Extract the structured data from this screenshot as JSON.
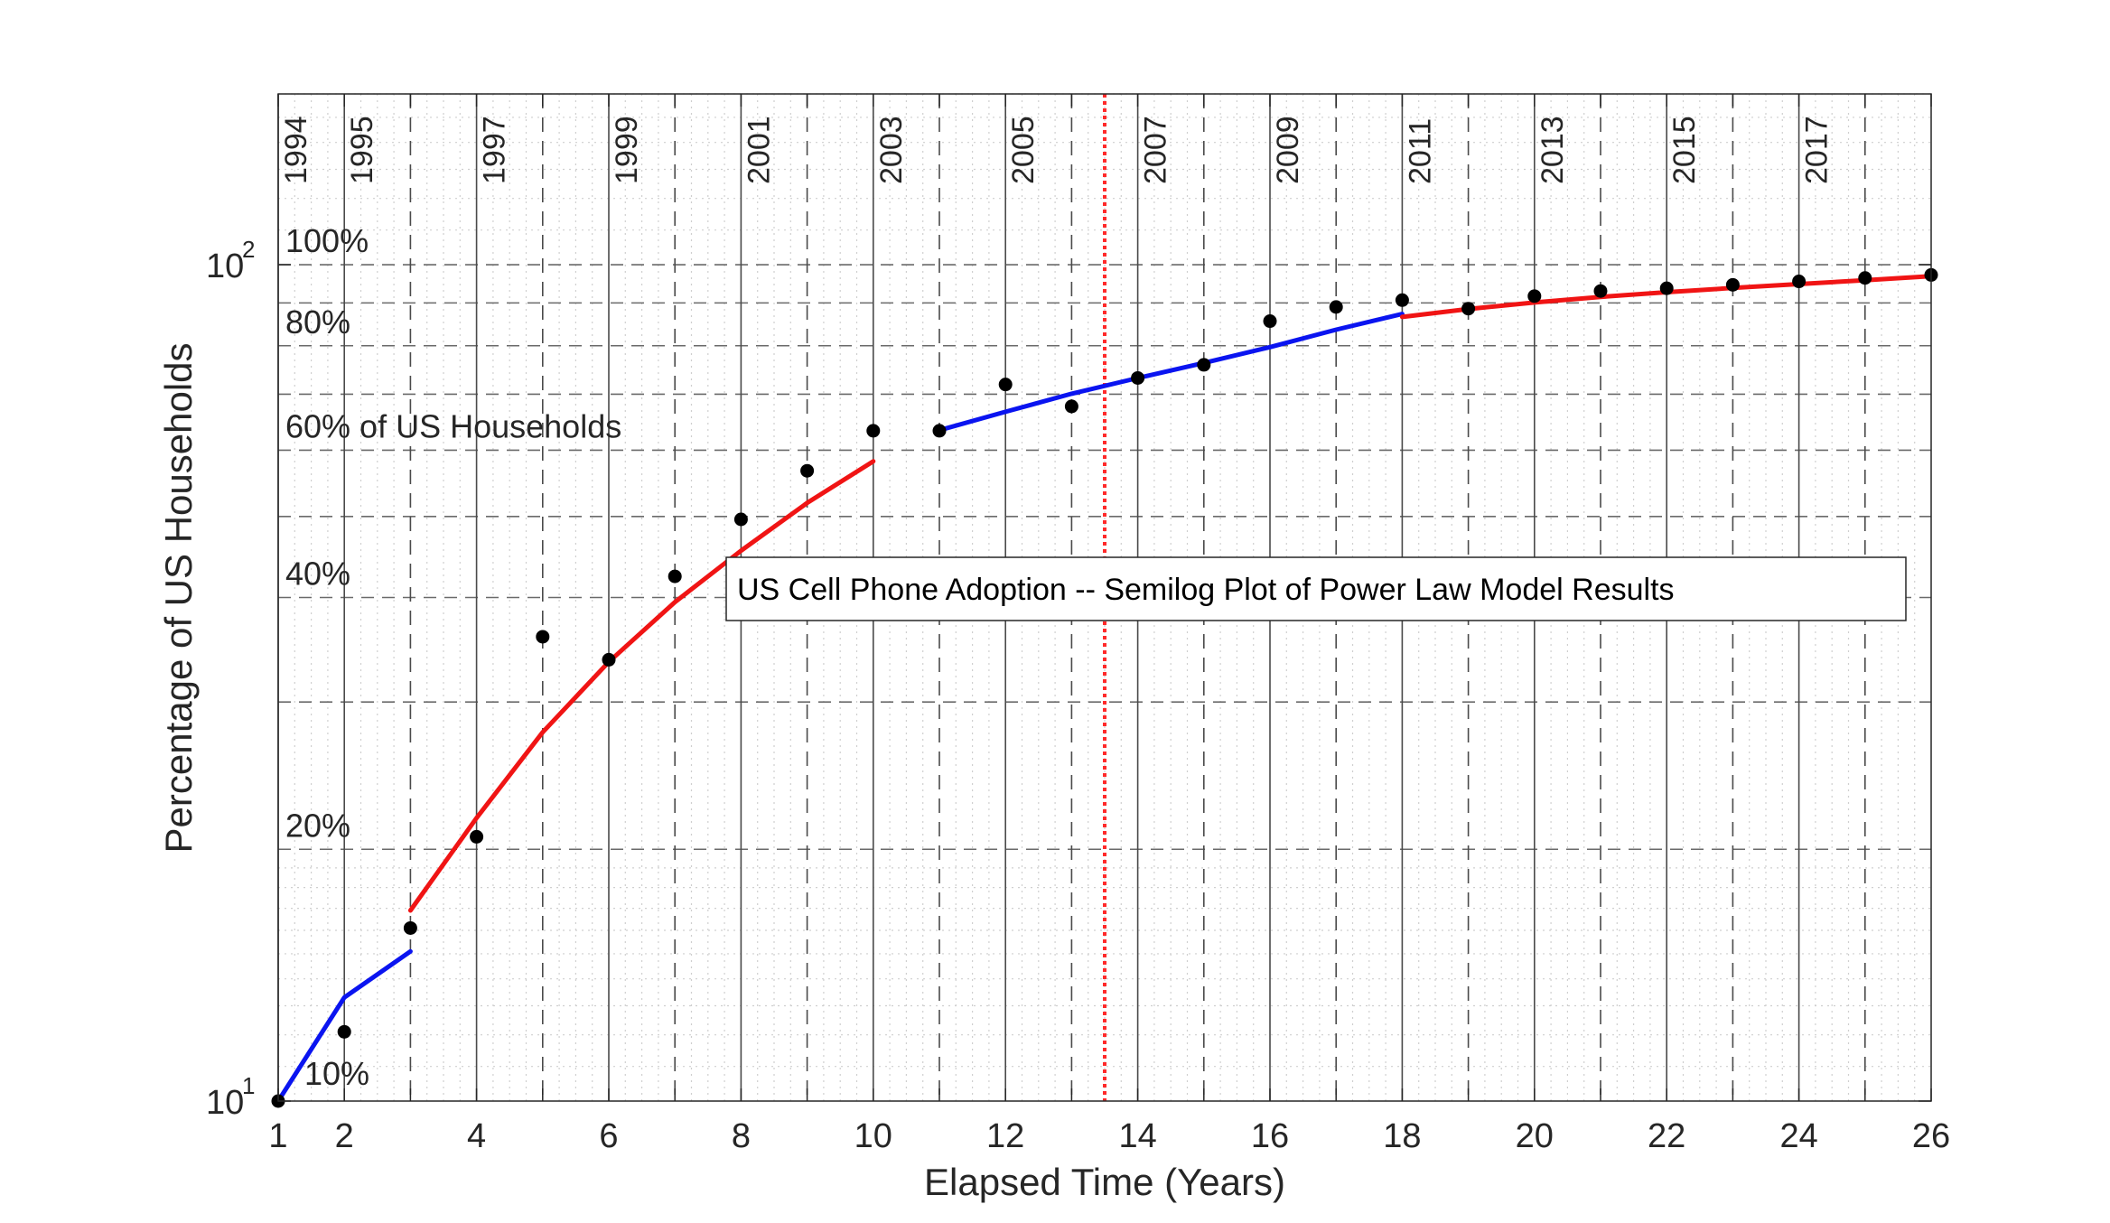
{
  "chart_data": {
    "type": "line",
    "title": "US Cell Phone Adoption -- Semilog Plot of Power Law Model Results",
    "xlabel": "Elapsed Time (Years)",
    "ylabel": "Percentage of US Households",
    "xlim": [
      1,
      26
    ],
    "ylim": [
      10,
      160
    ],
    "yscale": "log",
    "grid": true,
    "x_ticks": [
      1,
      2,
      4,
      6,
      8,
      10,
      12,
      14,
      16,
      18,
      20,
      22,
      24,
      26
    ],
    "x_tick_labels": [
      "1",
      "2",
      "4",
      "6",
      "8",
      "10",
      "12",
      "14",
      "16",
      "18",
      "20",
      "22",
      "24",
      "26"
    ],
    "y_ticks": [
      {
        "value": 10,
        "base": "10",
        "exp": "1"
      },
      {
        "value": 100,
        "base": "10",
        "exp": "2"
      }
    ],
    "pct_labels": [
      {
        "value": 10,
        "text": "10%"
      },
      {
        "value": 20,
        "text": "20%"
      },
      {
        "value": 40,
        "text": "40%"
      },
      {
        "value": 60,
        "text": "60% of US Households"
      },
      {
        "value": 80,
        "text": "80%"
      },
      {
        "value": 100,
        "text": "100%"
      }
    ],
    "year_labels": [
      {
        "x": 1,
        "text": "1994"
      },
      {
        "x": 2,
        "text": "1995"
      },
      {
        "x": 4,
        "text": "1997"
      },
      {
        "x": 6,
        "text": "1999"
      },
      {
        "x": 8,
        "text": "2001"
      },
      {
        "x": 10,
        "text": "2003"
      },
      {
        "x": 12,
        "text": "2005"
      },
      {
        "x": 14,
        "text": "2007"
      },
      {
        "x": 16,
        "text": "2009"
      },
      {
        "x": 18,
        "text": "2011"
      },
      {
        "x": 20,
        "text": "2013"
      },
      {
        "x": 22,
        "text": "2015"
      },
      {
        "x": 24,
        "text": "2017"
      }
    ],
    "solid_year_lines": [
      1,
      2,
      4,
      6,
      8,
      10,
      12,
      14,
      16,
      18,
      20,
      22,
      24
    ],
    "dashed_year_lines": [
      3,
      5,
      7,
      9,
      11,
      13,
      15,
      17,
      19,
      21,
      23,
      25
    ],
    "dashed_h_lines": [
      20,
      30,
      40,
      50,
      60,
      70,
      80,
      90,
      100
    ],
    "marker_line": {
      "x": 13.5,
      "color": "#ff2a2a"
    },
    "data_points": {
      "x": [
        1,
        2,
        3,
        4,
        5,
        6,
        7,
        8,
        9,
        10,
        11,
        12,
        13,
        14,
        15,
        16,
        17,
        18,
        19,
        20,
        21,
        22,
        23,
        24,
        25,
        26
      ],
      "y": [
        10.0,
        12.1,
        16.1,
        20.7,
        35.9,
        33.7,
        42.4,
        49.6,
        56.7,
        63.3,
        63.3,
        71.9,
        67.7,
        73.2,
        75.9,
        85.6,
        89.0,
        90.7,
        88.6,
        91.7,
        93.0,
        93.7,
        94.6,
        95.5,
        96.4,
        97.2
      ]
    },
    "series": [
      {
        "color": "#0a14f0",
        "x": [
          1,
          2,
          3
        ],
        "y": [
          10.0,
          13.3,
          15.1
        ]
      },
      {
        "color": "#f01414",
        "x": [
          3,
          4,
          5,
          6,
          7,
          8,
          9,
          10
        ],
        "y": [
          16.9,
          21.8,
          27.6,
          33.5,
          39.5,
          45.5,
          51.9,
          58.2
        ]
      },
      {
        "color": "#0a14f0",
        "x": [
          11,
          12,
          13,
          14,
          15,
          16,
          17,
          18
        ],
        "y": [
          63.4,
          66.7,
          70.1,
          73.2,
          76.3,
          79.7,
          83.6,
          87.3
        ]
      },
      {
        "color": "#f01414",
        "x": [
          18,
          19,
          20,
          21,
          22,
          23,
          24,
          25,
          26
        ],
        "y": [
          86.6,
          88.5,
          90.1,
          91.5,
          92.7,
          93.8,
          94.8,
          95.8,
          96.9
        ]
      }
    ]
  }
}
